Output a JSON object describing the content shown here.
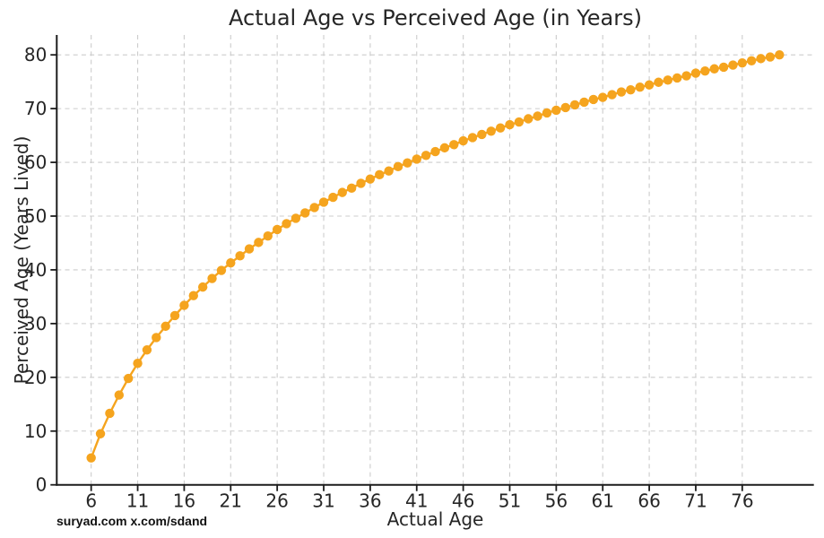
{
  "watermark": "suryad.com x.com/sdand",
  "colors": {
    "accent": "#F5A41E",
    "grid": "#cccccc",
    "axis": "#1c1c1c",
    "text": "#262626"
  },
  "chart_data": {
    "type": "line",
    "title": "Actual Age vs Perceived Age (in Years)",
    "xlabel": "Actual Age",
    "ylabel": "Perceived Age (Years Lived)",
    "x": [
      6,
      7,
      8,
      9,
      10,
      11,
      12,
      13,
      14,
      15,
      16,
      17,
      18,
      19,
      20,
      21,
      22,
      23,
      24,
      25,
      26,
      27,
      28,
      29,
      30,
      31,
      32,
      33,
      34,
      35,
      36,
      37,
      38,
      39,
      40,
      41,
      42,
      43,
      44,
      45,
      46,
      47,
      48,
      49,
      50,
      51,
      52,
      53,
      54,
      55,
      56,
      57,
      58,
      59,
      60,
      61,
      62,
      63,
      64,
      65,
      66,
      67,
      68,
      69,
      70,
      71,
      72,
      73,
      74,
      75,
      76,
      77,
      78,
      79,
      80
    ],
    "y": [
      5.0,
      9.5,
      13.3,
      16.7,
      19.8,
      22.6,
      25.1,
      27.4,
      29.5,
      31.5,
      33.4,
      35.2,
      36.8,
      38.4,
      39.9,
      41.3,
      42.6,
      43.9,
      45.1,
      46.3,
      47.5,
      48.6,
      49.6,
      50.6,
      51.6,
      52.6,
      53.5,
      54.4,
      55.2,
      56.1,
      56.9,
      57.7,
      58.4,
      59.2,
      59.9,
      60.6,
      61.3,
      62.0,
      62.7,
      63.3,
      64.0,
      64.6,
      65.2,
      65.8,
      66.4,
      67.0,
      67.5,
      68.1,
      68.6,
      69.2,
      69.7,
      70.2,
      70.7,
      71.2,
      71.7,
      72.1,
      72.6,
      73.1,
      73.5,
      74.0,
      74.4,
      74.9,
      75.3,
      75.7,
      76.1,
      76.6,
      77.0,
      77.4,
      77.7,
      78.1,
      78.5,
      78.9,
      79.3,
      79.6,
      80.0
    ],
    "xticks": [
      6,
      11,
      16,
      21,
      26,
      31,
      36,
      41,
      46,
      51,
      56,
      61,
      66,
      71,
      76
    ],
    "yticks": [
      0,
      10,
      20,
      30,
      40,
      50,
      60,
      70,
      80
    ],
    "xlim": [
      2.3,
      83.7
    ],
    "ylim": [
      0,
      83.7
    ],
    "grid": true,
    "grid_style": "dashed",
    "legend": "none",
    "marker": "o",
    "line_color": "#F5A41E",
    "marker_color": "#F5A41E"
  }
}
